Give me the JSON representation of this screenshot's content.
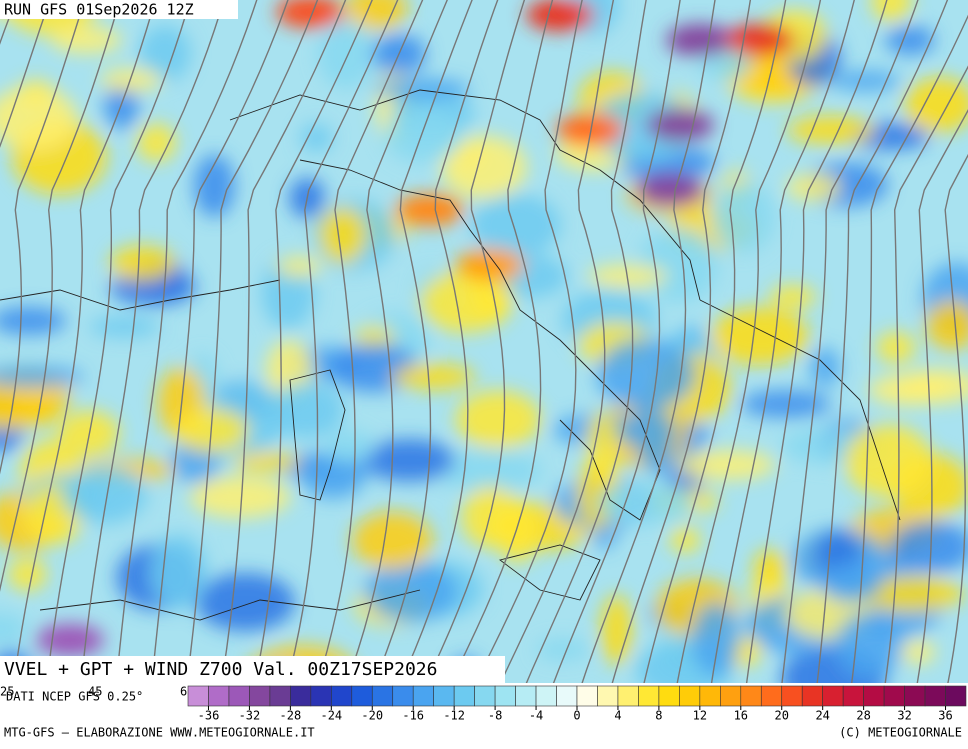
{
  "header": {
    "run": "RUN GFS 01Sep2026 12Z"
  },
  "map": {
    "title": "VVEL + GPT + WIND Z700 Val. 00Z17SEP2026",
    "source": "DATI NCEP GFS 0.25°",
    "corner_labels": [
      "25",
      "45",
      "6"
    ]
  },
  "colorbar": {
    "colors": [
      "#c88ed8",
      "#b06cc8",
      "#9c58b8",
      "#84479e",
      "#6a3c94",
      "#3a2c9c",
      "#2a34b4",
      "#2046cc",
      "#1e5cdc",
      "#2a74e4",
      "#3a8cec",
      "#4aa4f0",
      "#5ab8f0",
      "#6ccaf0",
      "#86d8f0",
      "#9ee4f2",
      "#b6ecf4",
      "#cef4f6",
      "#e8fafa",
      "#fffde8",
      "#fff8b0",
      "#fff070",
      "#ffe834",
      "#ffdc10",
      "#ffcc08",
      "#ffb808",
      "#ffa010",
      "#ff8818",
      "#ff6c1c",
      "#f85020",
      "#e83424",
      "#d82030",
      "#c8143c",
      "#b40c44",
      "#a00a4c",
      "#8c0a54",
      "#7c0a5a",
      "#6c0a5e"
    ],
    "ticks": [
      -36,
      -32,
      -28,
      -24,
      -20,
      -16,
      -12,
      -8,
      -4,
      0,
      4,
      8,
      12,
      16,
      20,
      24,
      28,
      32,
      36
    ]
  },
  "footer": {
    "left": "MTG-GFS – ELABORAZIONE WWW.METEOGIORNALE.IT",
    "right": "(C) METEOGIORNALE"
  }
}
